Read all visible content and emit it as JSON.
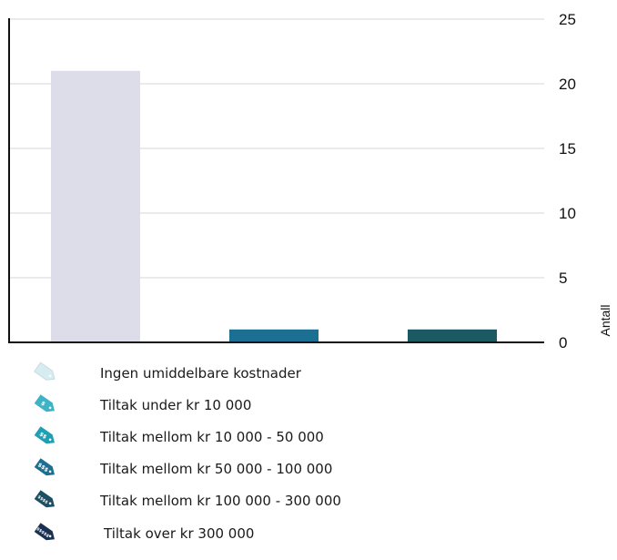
{
  "chart_data": {
    "type": "bar",
    "categories": [
      "Ingen umiddelbare kostnader",
      "Tiltak under kr 10 000",
      "Tiltak mellom kr 10 000 - 50 000"
    ],
    "values": [
      21,
      1,
      1
    ],
    "colors": [
      "#dcdde8",
      "#1a6f93",
      "#1c5a63"
    ],
    "ylabel": "Antall",
    "ylim": [
      0,
      25
    ],
    "yticks": [
      "0",
      "5",
      "10",
      "15",
      "20",
      "25"
    ],
    "grid": true,
    "yaxis_side": "right"
  },
  "legend": {
    "items": [
      {
        "label": "Ingen umiddelbare kostnader",
        "icon": "price-tag-icon",
        "mark": "",
        "color": "#d6ecf0"
      },
      {
        "label": "Tiltak under kr 10 000",
        "icon": "price-tag-icon",
        "mark": "$",
        "color": "#3fb3c6"
      },
      {
        "label": "Tiltak mellom kr 10 000 - 50 000",
        "icon": "price-tag-icon",
        "mark": "$$",
        "color": "#1f9fb3"
      },
      {
        "label": "Tiltak mellom kr 50 000 - 100 000",
        "icon": "price-tag-icon",
        "mark": "$$$",
        "color": "#1e6f8f"
      },
      {
        "label": "Tiltak mellom kr 100 000 - 300 000",
        "icon": "price-tag-icon",
        "mark": "$$$$",
        "color": "#1b4f63"
      },
      {
        "label": "Tiltak over kr  300 000",
        "icon": "price-tag-icon",
        "mark": "$$$$$",
        "color": "#1a3050"
      }
    ]
  }
}
